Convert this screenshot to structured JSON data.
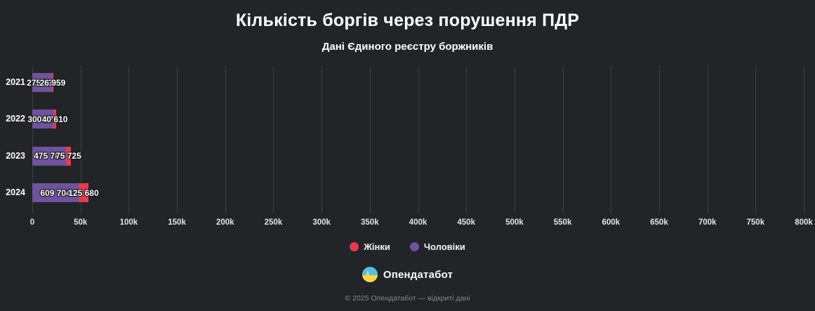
{
  "title": "Кількість боргів через порушення ПДР",
  "subtitle": "Дані Єдиного реєстру боржників",
  "colors": {
    "background": "#222528",
    "gridline": "#3a3d41",
    "women": "#e83a4a",
    "men": "#70529e"
  },
  "chart_data": {
    "type": "bar",
    "orientation": "horizontal",
    "stacked": true,
    "grid": true,
    "legend_position": "bottom",
    "categories": [
      "2021",
      "2022",
      "2023",
      "2024"
    ],
    "series": [
      {
        "name": "Чоловіки",
        "color_key": "men",
        "values": [
          275732,
          300272,
          475780,
          609704
        ],
        "labels": [
          "275 732",
          "300 272",
          "475 780",
          "609 704"
        ]
      },
      {
        "name": "Жінки",
        "color_key": "women",
        "values": [
          26959,
          40610,
          75725,
          125680
        ],
        "labels": [
          "26 959",
          "40 610",
          "75 725",
          "125 680"
        ]
      }
    ],
    "legend": [
      {
        "label": "Жінки",
        "color_key": "women"
      },
      {
        "label": "Чоловіки",
        "color_key": "men"
      }
    ],
    "xlim": [
      0,
      800000
    ],
    "x_ticks": [
      "0",
      "50k",
      "100k",
      "150k",
      "200k",
      "250k",
      "300k",
      "350k",
      "400k",
      "450k",
      "500k",
      "550k",
      "600k",
      "650k",
      "700k",
      "750k",
      "800k"
    ]
  },
  "footer": {
    "brand": "Опендатабот",
    "copyright": "© 2025 Опендатабот — відкриті дані"
  }
}
